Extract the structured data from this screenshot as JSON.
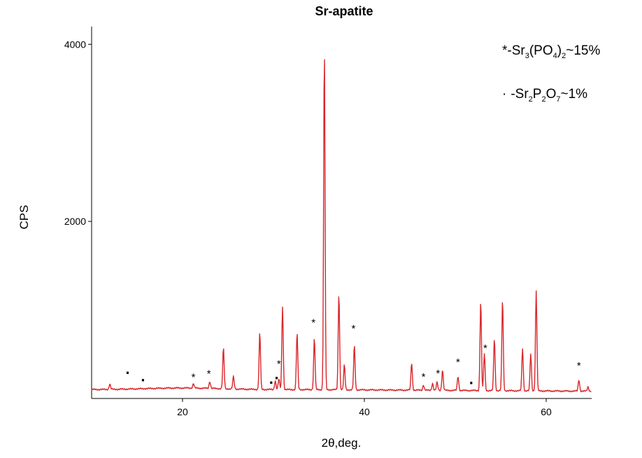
{
  "chart_data": {
    "type": "line",
    "title": "Sr-apatite",
    "xlabel": "2θ,deg.",
    "ylabel": "CPS",
    "xlim": [
      10,
      65
    ],
    "ylim": [
      0,
      4200
    ],
    "xticks": [
      20,
      40,
      60
    ],
    "yticks": [
      2000,
      4000
    ],
    "grid": false,
    "line_color": "#d9262b",
    "legend": {
      "placement": "top-right",
      "entries": [
        {
          "symbol": "*",
          "dash": "-",
          "base": "Sr",
          "sub1": "3",
          "mid": "(PO",
          "sub2": "4",
          "close": ")",
          "sub3": "2",
          "tail": "~15%"
        },
        {
          "symbol": "·",
          "dash": "-",
          "base": "Sr",
          "sub1": "2",
          "mid": "P",
          "sub2": "2",
          "close": "O",
          "sub3": "7",
          "tail": "~1%"
        }
      ]
    },
    "baseline": 100,
    "peaks": [
      {
        "x": 12.0,
        "y": 160
      },
      {
        "x": 21.2,
        "y": 150
      },
      {
        "x": 23.0,
        "y": 180
      },
      {
        "x": 24.5,
        "y": 560
      },
      {
        "x": 25.6,
        "y": 240
      },
      {
        "x": 28.5,
        "y": 740
      },
      {
        "x": 30.2,
        "y": 200
      },
      {
        "x": 30.6,
        "y": 220
      },
      {
        "x": 31.0,
        "y": 1040
      },
      {
        "x": 32.6,
        "y": 740
      },
      {
        "x": 34.5,
        "y": 680
      },
      {
        "x": 35.6,
        "y": 3950
      },
      {
        "x": 37.2,
        "y": 1190
      },
      {
        "x": 37.8,
        "y": 380
      },
      {
        "x": 38.9,
        "y": 600
      },
      {
        "x": 45.2,
        "y": 410
      },
      {
        "x": 46.5,
        "y": 160
      },
      {
        "x": 47.5,
        "y": 180
      },
      {
        "x": 48.0,
        "y": 190
      },
      {
        "x": 48.6,
        "y": 330
      },
      {
        "x": 50.3,
        "y": 260
      },
      {
        "x": 52.8,
        "y": 1110
      },
      {
        "x": 53.2,
        "y": 520
      },
      {
        "x": 54.3,
        "y": 690
      },
      {
        "x": 55.2,
        "y": 1130
      },
      {
        "x": 57.4,
        "y": 580
      },
      {
        "x": 58.3,
        "y": 520
      },
      {
        "x": 58.9,
        "y": 1230
      },
      {
        "x": 63.6,
        "y": 230
      },
      {
        "x": 64.6,
        "y": 150
      }
    ],
    "annotations": [
      {
        "x": 14.0,
        "y": 270,
        "text": "·"
      },
      {
        "x": 15.7,
        "y": 185,
        "text": "·"
      },
      {
        "x": 21.2,
        "y": 240,
        "text": "*"
      },
      {
        "x": 22.9,
        "y": 280,
        "text": "*"
      },
      {
        "x": 29.8,
        "y": 160,
        "text": "·"
      },
      {
        "x": 30.4,
        "y": 210,
        "text": "·"
      },
      {
        "x": 30.6,
        "y": 390,
        "text": "*"
      },
      {
        "x": 34.4,
        "y": 860,
        "text": "*"
      },
      {
        "x": 38.8,
        "y": 790,
        "text": "*"
      },
      {
        "x": 46.5,
        "y": 245,
        "text": "*"
      },
      {
        "x": 48.1,
        "y": 285,
        "text": "*"
      },
      {
        "x": 50.3,
        "y": 410,
        "text": "*"
      },
      {
        "x": 51.8,
        "y": 155,
        "text": "·"
      },
      {
        "x": 53.3,
        "y": 570,
        "text": "*"
      },
      {
        "x": 63.6,
        "y": 370,
        "text": "*"
      }
    ]
  }
}
